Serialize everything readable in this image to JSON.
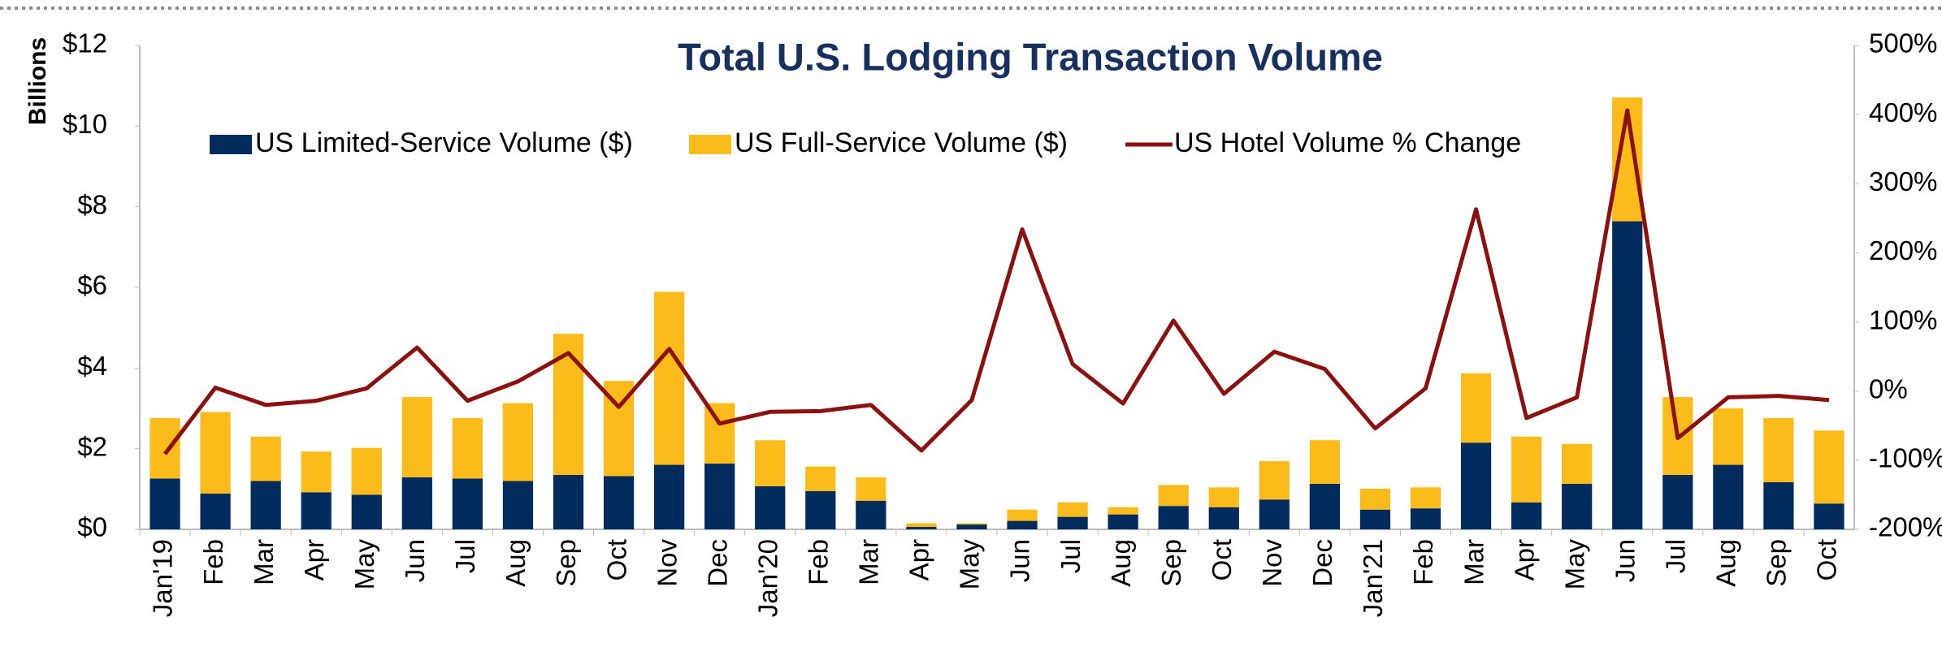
{
  "chart_data": {
    "type": "bar",
    "title": "Total U.S. Lodging Transaction Volume",
    "ylabel": "Billions",
    "categories": [
      "Jan'19",
      "Feb",
      "Mar",
      "Apr",
      "May",
      "Jun",
      "Jul",
      "Aug",
      "Sep",
      "Oct",
      "Nov",
      "Dec",
      "Jan'20",
      "Feb",
      "Mar",
      "Apr",
      "May",
      "Jun",
      "Jul",
      "Aug",
      "Sep",
      "Oct",
      "Nov",
      "Dec",
      "Jan'21",
      "Feb",
      "Mar",
      "Apr",
      "May",
      "Jun",
      "Jul",
      "Aug",
      "Sep",
      "Oct"
    ],
    "stacked": true,
    "series": [
      {
        "name": "US Limited-Service Volume ($)",
        "color": "#002b5c",
        "values": [
          1.26,
          0.89,
          1.2,
          0.92,
          0.86,
          1.29,
          1.26,
          1.2,
          1.35,
          1.32,
          1.6,
          1.63,
          1.07,
          0.95,
          0.71,
          0.06,
          0.12,
          0.21,
          0.31,
          0.37,
          0.58,
          0.55,
          0.74,
          1.13,
          0.49,
          0.52,
          2.15,
          0.67,
          1.13,
          7.64,
          1.35,
          1.6,
          1.17,
          0.64
        ]
      },
      {
        "name": "US Full-Service Volume ($)",
        "color": "#fbbb1a",
        "values": [
          1.5,
          2.02,
          1.1,
          1.01,
          1.16,
          1.99,
          1.5,
          1.93,
          3.5,
          2.36,
          4.29,
          1.5,
          1.14,
          0.61,
          0.58,
          0.09,
          0.03,
          0.28,
          0.36,
          0.18,
          0.52,
          0.49,
          0.95,
          1.08,
          0.52,
          0.52,
          1.72,
          1.63,
          0.99,
          3.07,
          1.93,
          1.4,
          1.59,
          1.81
        ]
      },
      {
        "name": "US Hotel Volume % Change",
        "color": "#8b1111",
        "type": "line",
        "axis": "y2",
        "values": [
          -91,
          5,
          -20,
          -14,
          4,
          63,
          -14,
          14,
          55,
          -23,
          61,
          -47,
          -30,
          -29,
          -20,
          -86,
          -13,
          234,
          39,
          -18,
          102,
          -4,
          57,
          32,
          -54,
          4,
          263,
          -39,
          -9,
          406,
          -68,
          -9,
          -7,
          -13
        ]
      }
    ],
    "ylim": [
      0,
      12
    ],
    "yticks": [
      {
        "value": 0,
        "label": "$0"
      },
      {
        "value": 2,
        "label": "$2"
      },
      {
        "value": 4,
        "label": "$4"
      },
      {
        "value": 6,
        "label": "$6"
      },
      {
        "value": 8,
        "label": "$8"
      },
      {
        "value": 10,
        "label": "$10"
      },
      {
        "value": 12,
        "label": "$12"
      }
    ],
    "y2lim": [
      -200,
      500
    ],
    "y2ticks": [
      {
        "value": -200,
        "label": "-200%"
      },
      {
        "value": -100,
        "label": "-100%"
      },
      {
        "value": 0,
        "label": "0%"
      },
      {
        "value": 100,
        "label": "100%"
      },
      {
        "value": 200,
        "label": "200%"
      },
      {
        "value": 300,
        "label": "300%"
      },
      {
        "value": 400,
        "label": "400%"
      },
      {
        "value": 500,
        "label": "500%"
      }
    ]
  }
}
